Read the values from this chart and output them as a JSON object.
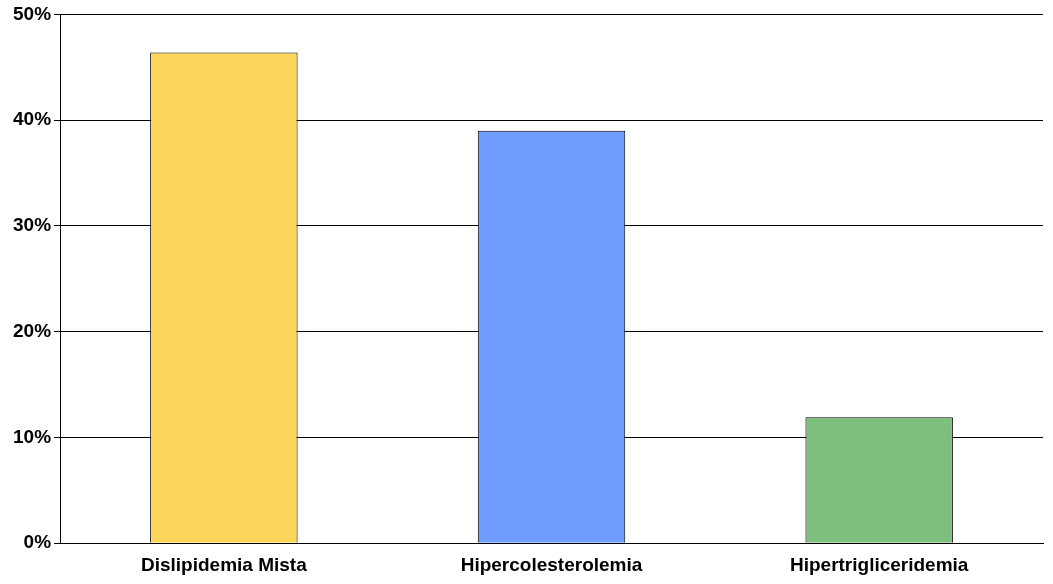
{
  "chart_data": {
    "type": "bar",
    "categories": [
      "Dislipidemia Mista",
      "Hipercolesterolemia",
      "Hipertrigliceridemia"
    ],
    "values": [
      46.4,
      39,
      11.9
    ],
    "colors": [
      "#fcd65a",
      "#6f9cff",
      "#7dbf7d"
    ],
    "ylim": [
      0,
      50
    ],
    "yticks": [
      {
        "value": 0,
        "label": "0%"
      },
      {
        "value": 10,
        "label": "10%"
      },
      {
        "value": 20,
        "label": "20%"
      },
      {
        "value": 30,
        "label": "30%"
      },
      {
        "value": 40,
        "label": "40%"
      },
      {
        "value": 50,
        "label": "50%"
      }
    ],
    "grid": "y",
    "legend": false
  }
}
